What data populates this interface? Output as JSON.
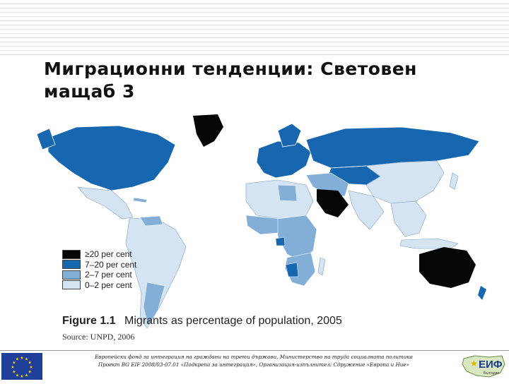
{
  "slide": {
    "title": "Миграционни тенденции: Световен мащаб 3"
  },
  "map": {
    "legend": [
      {
        "label": "≥20 per cent",
        "color": "#050505"
      },
      {
        "label": "7–20 per cent",
        "color": "#1666b0"
      },
      {
        "label": "2–7 per cent",
        "color": "#83aed8"
      },
      {
        "label": "0–2 per cent",
        "color": "#d4e4f3"
      }
    ],
    "figure_number": "Figure 1.1",
    "figure_title": "Migrants as percentage of population, 2005",
    "source": "Source: UNPD, 2006",
    "categories": {
      "greenland": "≥20 per cent",
      "north_america": "7–20 per cent",
      "mexico_central_america": "0–2 per cent",
      "south_america": "0–2 per cent",
      "europe": "7–20 per cent",
      "russia": "7–20 per cent",
      "arabian_peninsula": "≥20 per cent",
      "north_africa": "0–2 per cent",
      "south_asia_china": "0–2 per cent",
      "australia": "≥20 per cent",
      "new_zealand": "7–20 per cent"
    }
  },
  "footer": {
    "line1": "Европейски фонд за интеграция на граждани на трети държави, Министерство на труда социалната политика",
    "line2": "Проект BG EIF 2008/03-07.01 «Подкрепа за интеграция», Организация-изпълнител: Сдружение «Европа и Ние»",
    "logo_text": "ЕИФ",
    "logo_subtext": "България",
    "eu_flag_icon": "eu-flag-icon"
  }
}
